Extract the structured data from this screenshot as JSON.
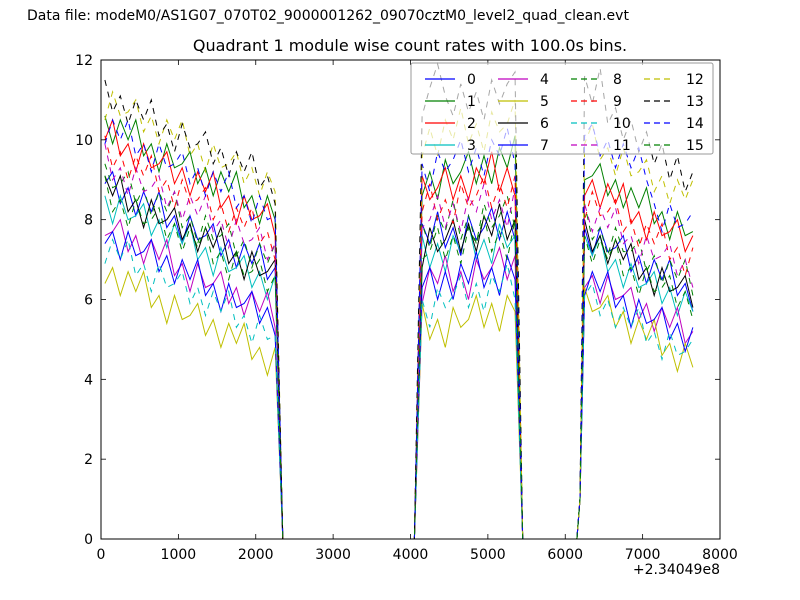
{
  "header": {
    "data_file": "Data file: modeM0/AS1G07_070T02_9000001262_09070cztM0_level2_quad_clean.evt"
  },
  "chart_data": {
    "type": "line",
    "title": "Quadrant 1 module wise count rates with 100.0s bins.",
    "xlabel": "",
    "ylabel": "",
    "x_offset_label": "+2.34049e8",
    "xlim": [
      0,
      8000
    ],
    "ylim": [
      0,
      12
    ],
    "x_ticks": [
      0,
      1000,
      2000,
      3000,
      4000,
      5000,
      6000,
      7000,
      8000
    ],
    "y_ticks": [
      0,
      2,
      4,
      6,
      8,
      10,
      12
    ],
    "bin_seconds": 100,
    "legend_position": "upper right",
    "grid": false,
    "segment_x_starts": [
      50,
      4150,
      6250
    ],
    "segment_x_step": 100,
    "bridge1": [
      [
        2350,
        0
      ],
      [
        4050,
        0
      ]
    ],
    "bridge2": [
      [
        5450,
        0
      ],
      [
        6150,
        0
      ],
      [
        6190,
        1.0
      ]
    ],
    "series": [
      {
        "label": "0",
        "color": "#0000ff",
        "dashed": false,
        "seg1": [
          8.9,
          9.2,
          8.4,
          8.8,
          8.1,
          8.7,
          8.2,
          8.7,
          7.8,
          8.1,
          7.4,
          8.1,
          7.5,
          7.6,
          7.9,
          7.1,
          7.5,
          6.8,
          7.4,
          6.9,
          7.4,
          6.5,
          6.8
        ],
        "seg2": [
          7.9,
          7.4,
          8.2,
          7.3,
          7.8,
          7.1,
          8.1,
          7.5,
          7.8,
          8.3,
          7.5,
          8.2,
          7.5
        ],
        "seg3": [
          7.8,
          7.1,
          7.8,
          7.2,
          7.3,
          7.6,
          6.7,
          7.1,
          6.4,
          7.0,
          6.5,
          7.0,
          6.1,
          6.4,
          5.7
        ]
      },
      {
        "label": "1",
        "color": "#008000",
        "dashed": false,
        "seg1": [
          10.6,
          9.9,
          10.5,
          10.0,
          10.5,
          9.6,
          9.9,
          9.2,
          9.9,
          9.3,
          9.4,
          9.7,
          8.9,
          9.3,
          8.6,
          9.2,
          8.7,
          9.2,
          8.3,
          8.6,
          7.9,
          8.6,
          8.0
        ],
        "seg2": [
          8.6,
          9.2,
          8.5,
          9.5,
          8.9,
          9.2,
          9.7,
          8.9,
          9.6,
          8.9,
          9.8,
          9.3,
          10.1
        ],
        "seg3": [
          9.0,
          9.1,
          9.4,
          8.6,
          9.0,
          8.3,
          8.8,
          8.3,
          8.8,
          7.9,
          8.2,
          7.5,
          8.2,
          7.6,
          7.7
        ]
      },
      {
        "label": "2",
        "color": "#ff0000",
        "dashed": false,
        "seg1": [
          10.0,
          10.5,
          9.6,
          9.9,
          9.2,
          9.9,
          9.3,
          9.4,
          9.7,
          8.9,
          9.3,
          8.6,
          9.2,
          8.7,
          9.2,
          8.3,
          8.6,
          7.9,
          8.6,
          8.0,
          8.1,
          8.4,
          7.6
        ],
        "seg2": [
          9.1,
          8.5,
          8.8,
          9.3,
          8.5,
          9.1,
          8.5,
          9.3,
          8.9,
          9.7,
          8.7,
          9.3,
          8.6
        ],
        "seg3": [
          8.6,
          9.0,
          8.3,
          8.9,
          8.4,
          8.9,
          7.9,
          8.2,
          7.5,
          8.2,
          7.6,
          7.7,
          8.0,
          7.2,
          7.6
        ]
      },
      {
        "label": "3",
        "color": "#00bfbf",
        "dashed": false,
        "seg1": [
          8.6,
          7.9,
          8.6,
          8.0,
          8.1,
          8.4,
          7.6,
          8.0,
          7.3,
          7.9,
          7.4,
          7.9,
          7.0,
          7.3,
          6.6,
          7.3,
          6.7,
          6.8,
          7.1,
          6.3,
          6.7,
          6.0,
          6.6
        ],
        "seg2": [
          7.6,
          6.8,
          7.4,
          6.7,
          7.6,
          7.2,
          7.9,
          7.0,
          7.5,
          6.9,
          7.9,
          7.3,
          7.6
        ],
        "seg3": [
          7.6,
          7.1,
          7.6,
          6.7,
          7.0,
          6.3,
          6.9,
          6.3,
          6.4,
          6.7,
          5.9,
          6.3,
          5.6,
          6.2,
          5.7
        ]
      },
      {
        "label": "4",
        "color": "#bf00bf",
        "dashed": false,
        "seg1": [
          7.6,
          7.7,
          8.0,
          7.2,
          7.6,
          6.9,
          7.5,
          7.0,
          7.5,
          6.6,
          6.9,
          6.2,
          6.9,
          6.3,
          6.4,
          6.7,
          5.9,
          6.3,
          5.6,
          6.2,
          5.7,
          6.2,
          5.3
        ],
        "seg2": [
          5.9,
          6.8,
          6.4,
          7.1,
          6.2,
          6.7,
          6.0,
          7.0,
          6.5,
          6.8,
          7.3,
          6.5,
          7.1
        ],
        "seg3": [
          6.3,
          6.6,
          5.9,
          6.6,
          6.0,
          6.1,
          6.3,
          5.5,
          5.9,
          5.2,
          5.8,
          5.3,
          5.8,
          4.9,
          5.2
        ]
      },
      {
        "label": "5",
        "color": "#bfbf00",
        "dashed": false,
        "seg1": [
          6.4,
          6.8,
          6.1,
          6.7,
          6.2,
          6.7,
          5.8,
          6.1,
          5.4,
          6.1,
          5.5,
          5.6,
          5.9,
          5.1,
          5.5,
          4.8,
          5.4,
          4.9,
          5.4,
          4.5,
          4.8,
          4.1,
          4.8
        ],
        "seg2": [
          5.9,
          5.0,
          5.5,
          4.8,
          5.8,
          5.3,
          5.5,
          6.1,
          5.3,
          5.9,
          5.2,
          6.1,
          5.7
        ],
        "seg3": [
          6.3,
          5.7,
          5.8,
          6.1,
          5.3,
          5.7,
          4.9,
          5.5,
          5.0,
          5.5,
          4.6,
          4.9,
          4.2,
          4.9,
          4.3
        ]
      },
      {
        "label": "6",
        "color": "#000000",
        "dashed": false,
        "seg1": [
          9.1,
          8.6,
          9.1,
          8.2,
          8.5,
          7.8,
          8.5,
          7.9,
          8.0,
          8.3,
          7.5,
          7.9,
          7.2,
          7.8,
          7.3,
          7.8,
          6.9,
          7.2,
          6.5,
          7.2,
          6.6,
          6.7,
          7.0
        ],
        "seg2": [
          6.8,
          7.8,
          7.2,
          7.5,
          8.0,
          7.2,
          7.9,
          7.2,
          8.1,
          7.6,
          8.4,
          7.5,
          8.0
        ],
        "seg3": [
          8.0,
          7.2,
          7.6,
          6.9,
          7.5,
          7.0,
          7.4,
          6.5,
          6.8,
          6.1,
          6.8,
          6.2,
          6.3,
          6.6,
          5.8
        ]
      },
      {
        "label": "7",
        "color": "#0000ff",
        "dashed": false,
        "seg1": [
          7.4,
          7.7,
          7.0,
          7.7,
          7.1,
          7.2,
          7.5,
          6.7,
          7.1,
          6.4,
          7.0,
          6.5,
          7.0,
          6.1,
          6.4,
          5.7,
          6.4,
          5.8,
          5.9,
          6.2,
          5.4,
          5.8,
          5.1
        ],
        "seg2": [
          6.3,
          6.8,
          6.0,
          6.7,
          6.0,
          6.9,
          6.4,
          7.2,
          6.3,
          6.8,
          6.1,
          7.1,
          6.5
        ],
        "seg3": [
          6.1,
          6.7,
          6.2,
          6.7,
          5.8,
          6.1,
          5.3,
          6.0,
          5.4,
          5.5,
          5.8,
          5.0,
          5.4,
          4.7,
          5.3
        ]
      },
      {
        "label": "8",
        "color": "#008000",
        "dashed": true,
        "seg1": [
          9.4,
          8.8,
          8.9,
          9.2,
          8.4,
          8.8,
          8.1,
          8.7,
          8.2,
          8.7,
          7.8,
          8.1,
          7.4,
          8.1,
          7.5,
          7.6,
          7.9,
          7.1,
          7.5,
          6.8,
          7.4,
          6.9,
          7.4
        ],
        "seg2": [
          7.9,
          7.3,
          8.1,
          7.7,
          8.5,
          7.5,
          8.1,
          7.4,
          8.4,
          7.8,
          8.1,
          8.6,
          7.8
        ],
        "seg3": [
          8.4,
          7.5,
          7.8,
          7.1,
          7.8,
          7.2,
          7.2,
          7.5,
          6.7,
          7.1,
          6.4,
          7.0,
          6.5,
          7.0,
          6.1
        ]
      },
      {
        "label": "9",
        "color": "#ff0000",
        "dashed": true,
        "seg1": [
          10.1,
          9.3,
          9.7,
          9.0,
          9.6,
          9.1,
          9.6,
          8.7,
          9.0,
          8.3,
          9.0,
          8.4,
          8.5,
          8.8,
          8.0,
          8.4,
          7.7,
          8.3,
          7.8,
          8.3,
          7.4,
          7.7,
          7.0
        ],
        "seg2": [
          8.2,
          8.9,
          8.0,
          8.5,
          7.9,
          8.9,
          8.3,
          8.6,
          9.1,
          8.3,
          8.9,
          8.3,
          9.1
        ],
        "seg3": [
          8.0,
          8.7,
          8.1,
          8.2,
          8.5,
          7.7,
          8.0,
          7.3,
          7.9,
          7.4,
          7.9,
          7.0,
          7.3,
          6.6,
          7.3
        ]
      },
      {
        "label": "10",
        "color": "#00bfbf",
        "dashed": true,
        "seg1": [
          6.9,
          7.5,
          7.0,
          7.5,
          6.6,
          6.9,
          6.2,
          6.9,
          6.3,
          6.4,
          6.7,
          5.9,
          6.3,
          5.6,
          6.2,
          5.7,
          6.2,
          5.3,
          5.6,
          4.9,
          5.6,
          5.0,
          5.1
        ],
        "seg2": [
          6.0,
          5.3,
          6.3,
          5.8,
          6.1,
          6.6,
          5.8,
          6.4,
          5.7,
          6.6,
          6.2,
          6.9,
          6.0
        ],
        "seg3": [
          6.1,
          6.4,
          5.6,
          6.0,
          5.3,
          5.8,
          5.3,
          5.8,
          4.9,
          5.2,
          4.5,
          5.2,
          4.6,
          4.7,
          5.0
        ]
      },
      {
        "label": "11",
        "color": "#bf00bf",
        "dashed": true,
        "seg1": [
          9.9,
          9.0,
          9.3,
          8.6,
          9.3,
          8.7,
          8.8,
          9.1,
          8.3,
          8.7,
          8.0,
          8.6,
          8.1,
          8.6,
          7.7,
          8.0,
          7.3,
          8.0,
          7.4,
          7.5,
          7.8,
          7.0,
          7.4
        ],
        "seg2": [
          7.8,
          8.0,
          8.6,
          7.8,
          8.4,
          7.7,
          8.6,
          8.2,
          8.9,
          8.0,
          8.5,
          7.8,
          8.8
        ],
        "seg3": [
          8.4,
          7.7,
          8.3,
          7.8,
          8.3,
          7.4,
          7.6,
          6.9,
          7.6,
          7.0,
          7.1,
          7.4,
          6.6,
          7.0,
          6.3
        ]
      },
      {
        "label": "12",
        "color": "#bfbf00",
        "dashed": true,
        "seg1": [
          10.5,
          11.2,
          10.6,
          10.7,
          11.0,
          10.2,
          10.6,
          9.9,
          10.5,
          10.0,
          10.5,
          9.6,
          9.9,
          9.2,
          9.9,
          9.3,
          9.4,
          9.7,
          8.9,
          9.3,
          8.6,
          9.2,
          8.7
        ],
        "seg2": [
          9.6,
          10.3,
          9.6,
          10.5,
          10.0,
          10.8,
          9.9,
          10.4,
          9.7,
          10.7,
          10.2,
          10.4,
          11.0
        ],
        "seg3": [
          9.9,
          10.4,
          9.5,
          9.8,
          9.1,
          9.8,
          9.1,
          9.2,
          9.5,
          8.7,
          9.1,
          8.4,
          9.0,
          8.5,
          9.0
        ]
      },
      {
        "label": "13",
        "color": "#000000",
        "dashed": true,
        "seg1": [
          11.5,
          10.7,
          11.1,
          10.4,
          11.0,
          10.5,
          11.0,
          10.1,
          10.4,
          9.7,
          10.4,
          9.8,
          9.9,
          10.2,
          9.4,
          9.8,
          9.1,
          9.7,
          9.2,
          9.7,
          8.8,
          9.1,
          8.4
        ],
        "seg2": [
          10.6,
          11.3,
          11.9,
          11.1,
          10.6,
          11.4,
          10.7,
          11.2,
          10.5,
          11.5,
          10.9,
          11.4,
          11.7
        ],
        "seg3": [
          11.6,
          10.9,
          11.8,
          10.4,
          10.8,
          10.0,
          10.5,
          9.7,
          10.2,
          9.4,
          9.9,
          9.0,
          9.6,
          8.7,
          9.2
        ]
      },
      {
        "label": "14",
        "color": "#0000ff",
        "dashed": true,
        "seg1": [
          9.9,
          10.5,
          10.0,
          10.5,
          9.6,
          9.9,
          9.2,
          9.9,
          9.3,
          9.4,
          9.7,
          8.9,
          9.3,
          8.6,
          9.2,
          8.7,
          9.2,
          8.3,
          8.6,
          7.9,
          8.6,
          8.0,
          8.1
        ],
        "seg2": [
          9.4,
          8.7,
          9.7,
          9.2,
          9.5,
          10.0,
          9.2,
          9.8,
          9.1,
          10.0,
          9.6,
          10.3,
          9.4
        ],
        "seg3": [
          10.1,
          10.4,
          9.6,
          10.0,
          9.3,
          9.9,
          9.3,
          9.8,
          9.0,
          8.4,
          7.7,
          8.4,
          7.8,
          7.9,
          8.2
        ]
      },
      {
        "label": "15",
        "color": "#008000",
        "dashed": true,
        "seg1": [
          9.1,
          8.2,
          8.5,
          7.8,
          8.5,
          7.9,
          8.0,
          8.3,
          7.5,
          7.9,
          7.2,
          7.8,
          7.3,
          7.8,
          6.9,
          7.2,
          6.5,
          7.2,
          6.6,
          6.7,
          7.0,
          6.2,
          6.6
        ],
        "seg2": [
          7.0,
          7.2,
          7.8,
          7.0,
          7.6,
          6.9,
          7.8,
          7.4,
          8.1,
          7.2,
          7.7,
          7.0,
          8.0
        ],
        "seg3": [
          7.6,
          6.9,
          7.5,
          7.0,
          7.5,
          6.6,
          6.8,
          6.1,
          6.8,
          6.2,
          6.3,
          6.6,
          5.8,
          6.2,
          5.5
        ]
      }
    ]
  }
}
